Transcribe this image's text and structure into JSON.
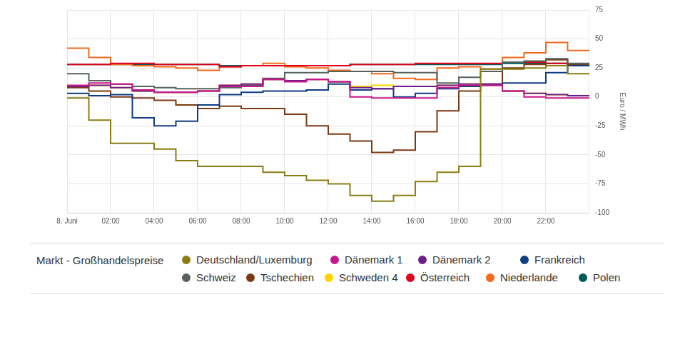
{
  "chart_data": {
    "type": "line",
    "line_style": "steps",
    "y_label": "Euro / MWh",
    "legend_title": "Markt - Großhandelspreise",
    "legend": "bottom",
    "grid": true,
    "x": [
      0,
      1,
      2,
      3,
      4,
      5,
      6,
      7,
      8,
      9,
      10,
      11,
      12,
      13,
      14,
      15,
      16,
      17,
      18,
      19,
      20,
      21,
      22,
      23
    ],
    "xlim": [
      0,
      24
    ],
    "xticks": [
      {
        "value": 0,
        "label": "8. Juni"
      },
      {
        "value": 2,
        "label": "02:00"
      },
      {
        "value": 4,
        "label": "04:00"
      },
      {
        "value": 6,
        "label": "06:00"
      },
      {
        "value": 8,
        "label": "08:00"
      },
      {
        "value": 10,
        "label": "10:00"
      },
      {
        "value": 12,
        "label": "12:00"
      },
      {
        "value": 14,
        "label": "14:00"
      },
      {
        "value": 16,
        "label": "16:00"
      },
      {
        "value": 18,
        "label": "18:00"
      },
      {
        "value": 20,
        "label": "20:00"
      },
      {
        "value": 22,
        "label": "22:00"
      }
    ],
    "ylim": [
      -100,
      75
    ],
    "yticks": [
      -100,
      -75,
      -50,
      -25,
      0,
      25,
      50,
      75
    ],
    "series": [
      {
        "name": "Deutschland/Luxemburg",
        "color": "#8b7d12",
        "values": [
          -1,
          -20,
          -40,
          -40,
          -45,
          -55,
          -60,
          -60,
          -60,
          -65,
          -68,
          -72,
          -75,
          -85,
          -90,
          -85,
          -73,
          -65,
          -60,
          24,
          24,
          25,
          27,
          20
        ]
      },
      {
        "name": "Dänemark 1",
        "color": "#c8168c",
        "values": [
          10,
          12,
          11,
          6,
          4,
          4,
          5,
          9,
          9,
          15,
          13,
          15,
          13,
          0,
          -1,
          -1,
          -1,
          8,
          10,
          10,
          5,
          0,
          -1,
          -1
        ]
      },
      {
        "name": "Dänemark 2",
        "color": "#6e1e8c",
        "values": [
          9,
          10,
          8,
          5,
          4,
          4,
          5,
          10,
          11,
          15,
          14,
          15,
          13,
          8,
          7,
          9,
          9,
          10,
          11,
          11,
          5,
          3,
          2,
          1
        ]
      },
      {
        "name": "Frankreich",
        "color": "#0f3c82",
        "values": [
          3,
          1,
          2,
          -18,
          -25,
          -21,
          -7,
          2,
          4,
          5,
          5,
          6,
          11,
          6,
          7,
          0,
          3,
          7,
          9,
          11,
          12,
          12,
          21,
          27
        ]
      },
      {
        "name": "Schweiz",
        "color": "#56625a",
        "values": [
          20,
          14,
          11,
          9,
          8,
          7,
          7,
          8,
          10,
          16,
          21,
          21,
          22,
          22,
          22,
          21,
          21,
          12,
          17,
          22,
          30,
          31,
          33,
          29
        ]
      },
      {
        "name": "Tschechien",
        "color": "#7b3a12",
        "values": [
          8,
          5,
          0,
          -1,
          -3,
          -7,
          -10,
          -8,
          -10,
          -10,
          -15,
          -25,
          -32,
          -38,
          -48,
          -46,
          -30,
          -12,
          5,
          10,
          25,
          28,
          32,
          28
        ]
      },
      {
        "name": "Schweden 4",
        "color": "#ffd200",
        "values": [
          9,
          10,
          8,
          5,
          4,
          4,
          5,
          10,
          11,
          15,
          14,
          15,
          13,
          9,
          10,
          9,
          9,
          10,
          11,
          11,
          5,
          3,
          2,
          1
        ]
      },
      {
        "name": "Österreich",
        "color": "#e2001a",
        "values": [
          28,
          28,
          29,
          29,
          28,
          28,
          28,
          26,
          27,
          27,
          27,
          27,
          27,
          28,
          28,
          28,
          29,
          29,
          29,
          29,
          30,
          30,
          29,
          27
        ]
      },
      {
        "name": "Niederlande",
        "color": "#f26b1d",
        "values": [
          42,
          34,
          28,
          27,
          26,
          25,
          23,
          26,
          27,
          29,
          26,
          25,
          23,
          22,
          20,
          16,
          15,
          25,
          26,
          24,
          34,
          38,
          47,
          40
        ]
      },
      {
        "name": "Polen",
        "color": "#005a5a",
        "values": [
          28,
          28,
          28,
          28,
          28,
          28,
          28,
          27,
          27,
          27,
          27,
          27,
          27,
          28,
          28,
          28,
          28,
          28,
          28,
          28,
          29,
          29,
          29,
          28
        ]
      }
    ]
  }
}
